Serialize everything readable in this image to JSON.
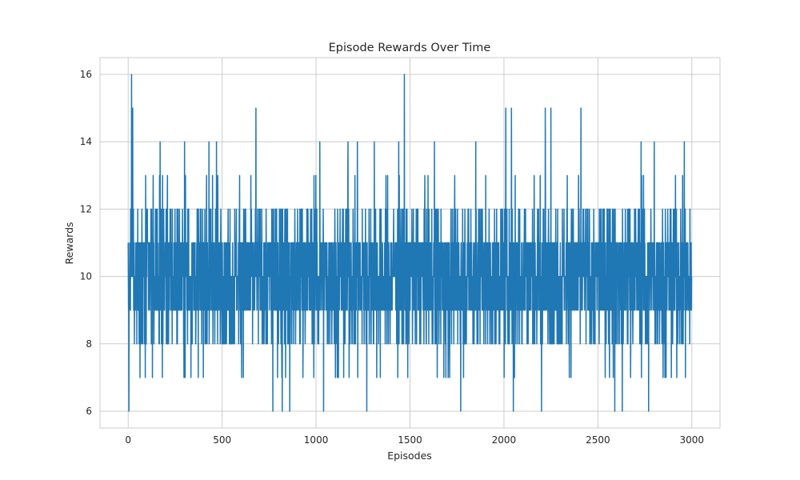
{
  "chart_data": {
    "type": "line",
    "title": "Episode Rewards Over Time",
    "xlabel": "Episodes",
    "ylabel": "Rewards",
    "xlim": [
      -150,
      3150
    ],
    "ylim": [
      5.5,
      16.5
    ],
    "xticks": [
      0,
      500,
      1000,
      1500,
      2000,
      2500,
      3000
    ],
    "xtick_labels": [
      "0",
      "500",
      "1000",
      "1500",
      "2000",
      "2500",
      "3000"
    ],
    "yticks": [
      6,
      8,
      10,
      12,
      14,
      16
    ],
    "ytick_labels": [
      "6",
      "8",
      "10",
      "12",
      "14",
      "16"
    ],
    "grid": true,
    "legend": "none",
    "colors": {
      "line": "#1f77b4",
      "grid": "#cccccc",
      "text": "#262626"
    },
    "series": [
      {
        "n_points": 3000,
        "typical_range": [
          8,
          12
        ],
        "min": 6,
        "max": 16,
        "approx_mean": 10,
        "notable_points": [
          {
            "x": 4,
            "y": 6
          },
          {
            "x": 18,
            "y": 16
          },
          {
            "x": 24,
            "y": 15
          },
          {
            "x": 170,
            "y": 14
          },
          {
            "x": 300,
            "y": 14
          },
          {
            "x": 430,
            "y": 14
          },
          {
            "x": 470,
            "y": 14
          },
          {
            "x": 680,
            "y": 15
          },
          {
            "x": 770,
            "y": 6
          },
          {
            "x": 820,
            "y": 6
          },
          {
            "x": 860,
            "y": 6
          },
          {
            "x": 1020,
            "y": 14
          },
          {
            "x": 1040,
            "y": 6
          },
          {
            "x": 1170,
            "y": 14
          },
          {
            "x": 1220,
            "y": 14
          },
          {
            "x": 1270,
            "y": 6
          },
          {
            "x": 1310,
            "y": 14
          },
          {
            "x": 1440,
            "y": 14
          },
          {
            "x": 1470,
            "y": 16
          },
          {
            "x": 1630,
            "y": 14
          },
          {
            "x": 1770,
            "y": 6
          },
          {
            "x": 1850,
            "y": 14
          },
          {
            "x": 2010,
            "y": 15
          },
          {
            "x": 2040,
            "y": 15
          },
          {
            "x": 2050,
            "y": 6
          },
          {
            "x": 2200,
            "y": 6
          },
          {
            "x": 2220,
            "y": 15
          },
          {
            "x": 2250,
            "y": 15
          },
          {
            "x": 2410,
            "y": 15
          },
          {
            "x": 2590,
            "y": 6
          },
          {
            "x": 2630,
            "y": 6
          },
          {
            "x": 2730,
            "y": 14
          },
          {
            "x": 2770,
            "y": 6
          },
          {
            "x": 2800,
            "y": 14
          },
          {
            "x": 2960,
            "y": 14
          },
          {
            "x": 2995,
            "y": 9
          }
        ]
      }
    ]
  }
}
